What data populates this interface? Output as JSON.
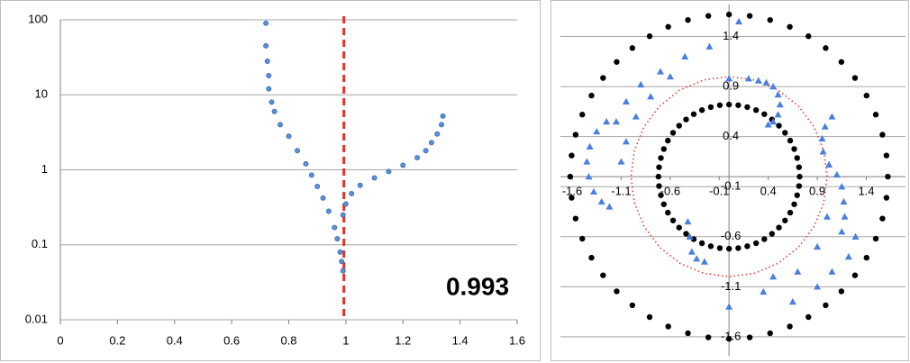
{
  "chart_data": [
    {
      "type": "scatter",
      "yscale": "log",
      "xlim": [
        0,
        1.6
      ],
      "xticks": [
        0,
        0.2,
        0.4,
        0.6,
        0.8,
        1,
        1.2,
        1.4,
        1.6
      ],
      "ylim": [
        0.01,
        100
      ],
      "yticks": [
        0.01,
        0.1,
        1,
        10,
        100
      ],
      "grid": true,
      "threshold": 0.993,
      "threshold_color": "#e8302a",
      "series": [
        {
          "marker": "circle",
          "color": "#5b8fd6",
          "x": [
            0.72,
            0.72,
            0.725,
            0.73,
            0.73,
            0.74,
            0.75,
            0.77,
            0.8,
            0.83,
            0.86,
            0.88,
            0.9,
            0.92,
            0.94,
            0.96,
            0.97,
            0.98,
            0.985,
            0.99,
            0.99,
            1.0,
            1.02,
            1.05,
            1.1,
            1.15,
            1.2,
            1.25,
            1.28,
            1.3,
            1.32,
            1.335,
            1.34
          ],
          "values": [
            90,
            45,
            28,
            18,
            12,
            8,
            6,
            4,
            2.8,
            1.8,
            1.2,
            0.85,
            0.6,
            0.42,
            0.28,
            0.17,
            0.12,
            0.08,
            0.06,
            0.045,
            0.25,
            0.35,
            0.48,
            0.62,
            0.78,
            0.95,
            1.15,
            1.45,
            1.8,
            2.3,
            3,
            4,
            5.2
          ]
        }
      ]
    },
    {
      "type": "scatter",
      "xlim": [
        -1.72,
        1.8
      ],
      "xticks": [
        -1.6,
        -1.1,
        -0.6,
        -0.1,
        0.4,
        0.9,
        1.4
      ],
      "ylim": [
        -1.79,
        1.72
      ],
      "yticks": [
        -1.6,
        -1.1,
        -0.6,
        -0.1,
        0.4,
        0.9,
        1.4
      ],
      "grid": true,
      "series": [
        {
          "marker": "circle",
          "color": "#000000",
          "x": [
            1.62,
            1.606,
            1.565,
            1.497,
            1.403,
            1.285,
            1.146,
            0.986,
            0.81,
            0.62,
            0.419,
            0.211,
            0,
            -0.211,
            -0.419,
            -0.62,
            -0.81,
            -0.986,
            -1.146,
            -1.285,
            -1.403,
            -1.497,
            -1.565,
            -1.606,
            -1.62,
            -1.606,
            -1.565,
            -1.497,
            -1.403,
            -1.285,
            -1.146,
            -0.986,
            -0.81,
            -0.62,
            -0.419,
            -0.211,
            0,
            0.211,
            0.419,
            0.62,
            0.81,
            0.986,
            1.146,
            1.285,
            1.403,
            1.497,
            1.565,
            1.606
          ],
          "values": [
            0,
            0.211,
            0.419,
            0.62,
            0.81,
            0.986,
            1.146,
            1.285,
            1.403,
            1.497,
            1.565,
            1.606,
            1.62,
            1.606,
            1.565,
            1.497,
            1.403,
            1.285,
            1.146,
            0.986,
            0.81,
            0.62,
            0.419,
            0.211,
            0,
            -0.211,
            -0.419,
            -0.62,
            -0.81,
            -0.986,
            -1.146,
            -1.285,
            -1.403,
            -1.497,
            -1.565,
            -1.606,
            -1.62,
            -1.606,
            -1.565,
            -1.497,
            -1.403,
            -1.285,
            -1.146,
            -0.986,
            -0.81,
            -0.62,
            -0.419,
            -0.211
          ]
        },
        {
          "marker": "circle",
          "color": "#000000",
          "x": [
            0.72,
            0.714,
            0.695,
            0.665,
            0.624,
            0.571,
            0.509,
            0.438,
            0.36,
            0.276,
            0.186,
            0.094,
            0,
            -0.094,
            -0.186,
            -0.276,
            -0.36,
            -0.438,
            -0.509,
            -0.571,
            -0.624,
            -0.665,
            -0.695,
            -0.714,
            -0.72,
            -0.714,
            -0.695,
            -0.665,
            -0.624,
            -0.571,
            -0.509,
            -0.438,
            -0.36,
            -0.276,
            -0.186,
            -0.094,
            0,
            0.094,
            0.186,
            0.276,
            0.36,
            0.438,
            0.509,
            0.571,
            0.624,
            0.665,
            0.695,
            0.714
          ],
          "values": [
            0,
            0.094,
            0.186,
            0.276,
            0.36,
            0.438,
            0.509,
            0.571,
            0.624,
            0.665,
            0.695,
            0.714,
            0.72,
            0.714,
            0.695,
            0.665,
            0.624,
            0.571,
            0.509,
            0.438,
            0.36,
            0.276,
            0.186,
            0.094,
            0,
            -0.094,
            -0.186,
            -0.276,
            -0.36,
            -0.438,
            -0.509,
            -0.571,
            -0.624,
            -0.665,
            -0.695,
            -0.714,
            -0.72,
            -0.714,
            -0.695,
            -0.665,
            -0.624,
            -0.571,
            -0.509,
            -0.438,
            -0.36,
            -0.276,
            -0.186,
            -0.094
          ]
        },
        {
          "marker": "dotted-line",
          "color": "#e8302a",
          "x": [
            1,
            0.966,
            0.866,
            0.707,
            0.5,
            0.259,
            0,
            -0.259,
            -0.5,
            -0.707,
            -0.866,
            -0.966,
            -1,
            -0.966,
            -0.866,
            -0.707,
            -0.5,
            -0.259,
            0,
            0.259,
            0.5,
            0.707,
            0.866,
            0.966
          ],
          "values": [
            0,
            0.259,
            0.5,
            0.707,
            0.866,
            0.966,
            1,
            0.966,
            0.866,
            0.707,
            0.5,
            0.259,
            0,
            -0.259,
            -0.5,
            -0.707,
            -0.866,
            -0.966,
            -1,
            -0.966,
            -0.866,
            -0.707,
            -0.5,
            -0.259
          ]
        },
        {
          "marker": "triangle",
          "color": "#4a7fe0",
          "x": [
            0.0,
            0.2,
            0.3,
            0.38,
            0.45,
            0.5,
            0.52,
            0.5,
            0.45,
            0.4,
            1.05,
            0.98,
            0.95,
            0.96,
            1.02,
            1.1,
            1.15,
            1.17,
            1.18,
            1.15,
            1.29,
            1.22,
            1.05,
            0.9,
            0.65,
            0.45,
            0.35,
            0.0,
            -1.25,
            -1.35,
            -1.42,
            -1.45,
            -1.43,
            -1.38,
            -1.3,
            -1.22,
            0.1,
            -0.2,
            -0.45,
            -0.7,
            -0.9,
            -1.05,
            -1.15,
            -0.6,
            -0.8,
            -0.95,
            -1.05,
            -1.1,
            -0.42,
            -0.4,
            -0.38,
            -0.33,
            -0.25,
            0.7,
            0.9,
            1.0
          ],
          "values": [
            0.98,
            0.98,
            0.96,
            0.94,
            0.9,
            0.82,
            0.72,
            0.62,
            0.55,
            0.52,
            0.6,
            0.5,
            0.38,
            0.25,
            0.12,
            0.02,
            -0.1,
            -0.25,
            -0.4,
            -0.55,
            -0.6,
            -0.8,
            -0.95,
            -1.1,
            -1.25,
            -1.0,
            -1.15,
            -1.3,
            0.55,
            0.45,
            0.3,
            0.15,
            0,
            -0.15,
            -0.25,
            -0.3,
            1.55,
            1.3,
            1.2,
            1.05,
            0.92,
            0.75,
            0.55,
            1.0,
            0.8,
            0.6,
            0.35,
            0.15,
            -0.45,
            -0.6,
            -0.75,
            -0.82,
            -0.85,
            -0.95,
            -0.7,
            -0.4
          ]
        }
      ]
    }
  ]
}
